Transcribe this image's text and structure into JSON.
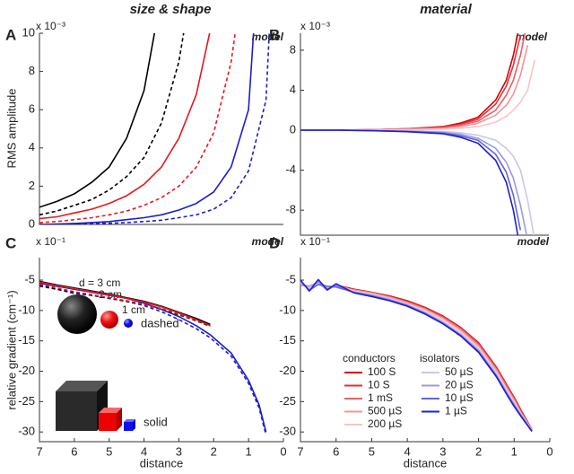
{
  "chart_data": [
    {
      "type": "line",
      "panel": "A",
      "title": "size & shape",
      "annotation": "model",
      "ylabel": "RMS amplitude",
      "y_multiplier": "x 10⁻³",
      "x": [
        7,
        6.5,
        6,
        5.5,
        5,
        4.5,
        4,
        3.5,
        3,
        2.5,
        2,
        1.5,
        1,
        0.5,
        0.3
      ],
      "xlim": [
        7,
        0
      ],
      "ylim": [
        0,
        10
      ],
      "yticks": [
        0,
        2,
        4,
        6,
        8,
        10
      ],
      "grid": false,
      "series": [
        {
          "color": "#000000",
          "dashed": false,
          "values": [
            0.9,
            1.2,
            1.6,
            2.2,
            3.0,
            4.5,
            7.0,
            12,
            null,
            null,
            null,
            null,
            null,
            null,
            null
          ]
        },
        {
          "color": "#000000",
          "dashed": true,
          "values": [
            0.5,
            0.7,
            1.0,
            1.3,
            1.8,
            2.5,
            3.5,
            5.3,
            8.5,
            14,
            null,
            null,
            null,
            null,
            null
          ]
        },
        {
          "color": "#e3191e",
          "dashed": false,
          "values": [
            0.3,
            0.4,
            0.6,
            0.8,
            1.1,
            1.5,
            2.1,
            3.0,
            4.5,
            6.8,
            11,
            null,
            null,
            null,
            null
          ]
        },
        {
          "color": "#e3191e",
          "dashed": true,
          "values": [
            0.1,
            0.15,
            0.25,
            0.35,
            0.5,
            0.7,
            1.0,
            1.4,
            2.0,
            3.0,
            4.8,
            8.5,
            15,
            null,
            null
          ]
        },
        {
          "color": "#1c1cd2",
          "dashed": false,
          "values": [
            0,
            0.02,
            0.05,
            0.1,
            0.15,
            0.25,
            0.35,
            0.5,
            0.75,
            1.1,
            1.7,
            3.0,
            6.0,
            20,
            null
          ]
        },
        {
          "color": "#1c1cd2",
          "dashed": true,
          "values": [
            0,
            0.01,
            0.02,
            0.04,
            0.06,
            0.1,
            0.15,
            0.22,
            0.35,
            0.5,
            0.8,
            1.4,
            2.8,
            6.5,
            14
          ]
        }
      ]
    },
    {
      "type": "line",
      "panel": "B",
      "title": "material",
      "annotation": "model",
      "y_multiplier": "x 10⁻³",
      "x": [
        7,
        6,
        5,
        4,
        3,
        2.5,
        2,
        1.5,
        1.2,
        1,
        0.8,
        0.6,
        0.4
      ],
      "xlim": [
        7,
        0
      ],
      "ylim": [
        -10.5,
        9.7
      ],
      "yticks": [
        -8,
        -4,
        0,
        4,
        8
      ],
      "grid": false,
      "series": [
        {
          "color": "#d40000",
          "dashed": false,
          "values": [
            0,
            0,
            0.05,
            0.15,
            0.35,
            0.7,
            1.3,
            3,
            5,
            7.5,
            11,
            null,
            null
          ]
        },
        {
          "color": "#e0303a",
          "dashed": false,
          "values": [
            0,
            0,
            0.05,
            0.15,
            0.3,
            0.6,
            1.1,
            2.6,
            4.4,
            6.5,
            9.5,
            null,
            null
          ]
        },
        {
          "color": "#e86068",
          "dashed": false,
          "values": [
            0,
            0,
            0.04,
            0.12,
            0.25,
            0.5,
            0.9,
            2,
            3.5,
            5,
            7.5,
            11,
            null
          ]
        },
        {
          "color": "#f0959a",
          "dashed": false,
          "values": [
            0,
            0,
            0.03,
            0.08,
            0.18,
            0.35,
            0.7,
            1.5,
            2.5,
            3.6,
            5.5,
            8.5,
            null
          ]
        },
        {
          "color": "#f7c4c6",
          "dashed": false,
          "values": [
            0,
            0,
            0.02,
            0.04,
            0.1,
            0.2,
            0.35,
            0.8,
            1.4,
            2,
            2.8,
            4,
            7
          ]
        },
        {
          "color": "#c8c8f0",
          "dashed": false,
          "values": [
            0,
            0,
            -0.02,
            -0.05,
            -0.12,
            -0.25,
            -0.5,
            -1,
            -1.8,
            -2.6,
            -4,
            -7,
            -11
          ]
        },
        {
          "color": "#9a9ae6",
          "dashed": false,
          "values": [
            0,
            0,
            -0.03,
            -0.1,
            -0.2,
            -0.4,
            -0.8,
            -1.8,
            -3.2,
            -4.8,
            -7.5,
            -11,
            null
          ]
        },
        {
          "color": "#6464dc",
          "dashed": false,
          "values": [
            0,
            0,
            -0.04,
            -0.12,
            -0.28,
            -0.55,
            -1,
            -2.4,
            -4.2,
            -6.5,
            -10,
            null,
            null
          ]
        },
        {
          "color": "#2020d0",
          "dashed": false,
          "values": [
            0,
            0,
            -0.05,
            -0.15,
            -0.35,
            -0.7,
            -1.3,
            -3,
            -5.2,
            -8,
            -12,
            null,
            null
          ]
        }
      ]
    },
    {
      "type": "line",
      "panel": "C",
      "annotation": "model",
      "ylabel": "relative gradient (cm⁻¹)",
      "xlabel": "distance",
      "y_multiplier": "x 10⁻¹",
      "x": [
        7,
        6.5,
        6,
        5.5,
        5,
        4.5,
        4,
        3.5,
        3,
        2.5,
        2.1,
        1.5,
        1,
        0.7,
        0.5
      ],
      "xlim": [
        7,
        0
      ],
      "ylim": [
        -31.6,
        -1.3
      ],
      "xticks": [
        7,
        6,
        5,
        4,
        3,
        2,
        1,
        0
      ],
      "yticks": [
        -5,
        -10,
        -15,
        -20,
        -25,
        -30
      ],
      "grid": false,
      "inset": {
        "size_label": "d = 3 cm",
        "mid_label": "2 cm",
        "small_label": "1 cm",
        "dashed_label": "dashed",
        "solid_label": "solid"
      },
      "series": [
        {
          "color": "#1c1cd2",
          "dashed": false,
          "values": [
            -5.5,
            -6,
            -6.5,
            -7,
            -7.5,
            -8,
            -8.8,
            -9.8,
            -11,
            -12.5,
            -14,
            -17,
            -21.5,
            -25.5,
            -30
          ]
        },
        {
          "color": "#1c1cd2",
          "dashed": true,
          "values": [
            -6,
            -6.5,
            -7.2,
            -7.5,
            -8,
            -8.5,
            -9.2,
            -10.2,
            -11.5,
            -13,
            -14.5,
            -17.5,
            -22,
            -26,
            -30.5
          ]
        },
        {
          "color": "#000000",
          "dashed": false,
          "values": [
            -5.2,
            -5.8,
            -6.3,
            -6.8,
            -7.3,
            -7.9,
            -8.5,
            -9.3,
            -10.3,
            -11.3,
            -12.3,
            null,
            null,
            null,
            null
          ]
        },
        {
          "color": "#000000",
          "dashed": true,
          "values": [
            -5.8,
            -6.5,
            -7,
            -7.5,
            -8,
            -8.5,
            -9,
            -9.8,
            -10.7,
            -11.7,
            -12.6,
            null,
            null,
            null,
            null
          ]
        },
        {
          "color": "#e3191e",
          "dashed": false,
          "values": [
            -5.3,
            -5.9,
            -6.4,
            -6.9,
            -7.4,
            -8,
            -8.6,
            -9.4,
            -10.4,
            -11.5,
            -12.5,
            null,
            null,
            null,
            null
          ]
        },
        {
          "color": "#e3191e",
          "dashed": true,
          "values": [
            -5.7,
            -6.3,
            -6.9,
            -7.4,
            -7.9,
            -8.4,
            -9,
            -9.7,
            -10.6,
            -11.6,
            -12.5,
            null,
            null,
            null,
            null
          ]
        }
      ]
    },
    {
      "type": "line",
      "panel": "D",
      "annotation": "model",
      "xlabel": "distance",
      "y_multiplier": "x 10⁻¹",
      "x": [
        7,
        6.75,
        6.5,
        6.25,
        6,
        5.5,
        5,
        4.5,
        4,
        3.5,
        3,
        2.5,
        2,
        1.5,
        1.2,
        1,
        0.8,
        0.5
      ],
      "xlim": [
        7,
        0
      ],
      "ylim": [
        -31.6,
        -1.3
      ],
      "xticks": [
        7,
        6,
        5,
        4,
        3,
        2,
        1,
        0
      ],
      "yticks": [
        -5,
        -10,
        -15,
        -20,
        -25,
        -30
      ],
      "grid": false,
      "series": [
        {
          "name": "100 S",
          "group": "conductors",
          "color": "#d40000",
          "dashed": false,
          "values": [
            -5.5,
            -6.3,
            -5.2,
            -6.4,
            -5.8,
            -6.5,
            -7,
            -7.6,
            -8.4,
            -9.5,
            -10.9,
            -12.8,
            -15.3,
            -19.3,
            -22.3,
            -24.3,
            -26.5,
            -29.6
          ]
        },
        {
          "name": "10 S",
          "group": "conductors",
          "color": "#e0303a",
          "dashed": false,
          "values": [
            -5.2,
            -6.6,
            -5.4,
            -6.2,
            -6,
            -6.6,
            -7.1,
            -7.7,
            -8.5,
            -9.6,
            -11,
            -12.9,
            -15.4,
            -19.4,
            -22.4,
            -24.4,
            -26.6,
            -29.6
          ]
        },
        {
          "name": "1 mS",
          "group": "conductors",
          "color": "#e86068",
          "dashed": false,
          "values": [
            -5.8,
            -6.1,
            -5.6,
            -6.5,
            -5.9,
            -6.7,
            -7.2,
            -7.8,
            -8.6,
            -9.7,
            -11.1,
            -13,
            -15.6,
            -19.6,
            -22.6,
            -24.6,
            -26.8,
            -29.6
          ]
        },
        {
          "name": "500 µS",
          "group": "conductors",
          "color": "#f0959a",
          "dashed": false,
          "values": [
            -5.4,
            -6.4,
            -5.1,
            -6.3,
            -6.1,
            -6.6,
            -7.1,
            -7.8,
            -8.7,
            -9.8,
            -11.3,
            -13.2,
            -15.8,
            -19.8,
            -22.8,
            -24.8,
            -27,
            -29.7
          ]
        },
        {
          "name": "200 µS",
          "group": "conductors",
          "color": "#f7c4c6",
          "dashed": false,
          "values": [
            -5.6,
            -6.2,
            -5.5,
            -6.6,
            -5.7,
            -6.8,
            -7.3,
            -8,
            -8.9,
            -10,
            -11.5,
            -13.5,
            -16.1,
            -20.1,
            -23.1,
            -25,
            -27.1,
            -29.7
          ]
        },
        {
          "name": "50 µS",
          "group": "isolators",
          "color": "#c8c8f0",
          "dashed": false,
          "values": [
            -5.3,
            -6.5,
            -5.6,
            -6.1,
            -6.2,
            -6.9,
            -7.4,
            -8.1,
            -9,
            -10.2,
            -11.8,
            -13.8,
            -16.4,
            -20.4,
            -23.4,
            -25.3,
            -27.2,
            -29.8
          ]
        },
        {
          "name": "20 µS",
          "group": "isolators",
          "color": "#9a9ae6",
          "dashed": false,
          "values": [
            -5.7,
            -6,
            -5.3,
            -6.7,
            -5.8,
            -7,
            -7.5,
            -8.2,
            -9.1,
            -10.4,
            -12,
            -14,
            -16.6,
            -20.6,
            -23.6,
            -25.5,
            -27.3,
            -29.8
          ]
        },
        {
          "name": "10 µS",
          "group": "isolators",
          "color": "#6464dc",
          "dashed": false,
          "values": [
            -5.1,
            -6.7,
            -5.7,
            -6,
            -6.1,
            -7,
            -7.6,
            -8.3,
            -9.2,
            -10.5,
            -12.1,
            -14.1,
            -16.8,
            -20.8,
            -23.8,
            -25.7,
            -27.4,
            -29.9
          ]
        },
        {
          "name": "1 µS",
          "group": "isolators",
          "color": "#2020d0",
          "dashed": false,
          "values": [
            -5,
            -6.8,
            -4.9,
            -6.6,
            -5.6,
            -7.1,
            -7.7,
            -8.4,
            -9.3,
            -10.6,
            -12.2,
            -14.2,
            -16.9,
            -20.9,
            -23.9,
            -25.8,
            -27.5,
            -29.9
          ]
        }
      ]
    }
  ]
}
